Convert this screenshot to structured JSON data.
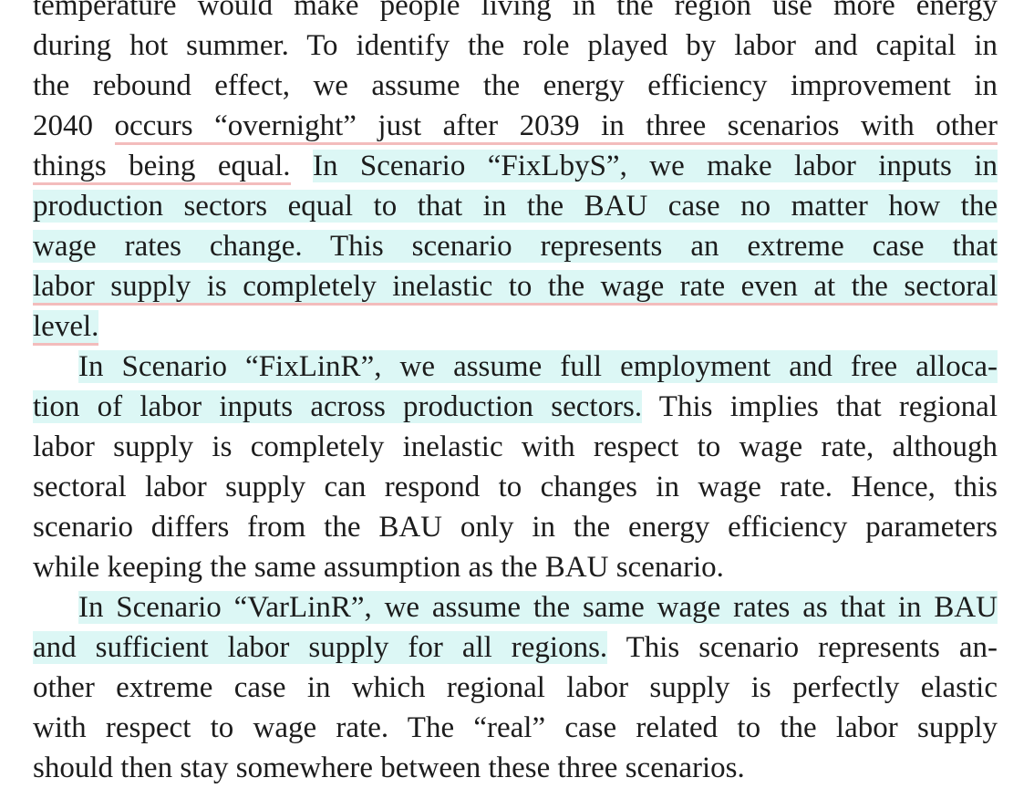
{
  "document": {
    "lines": [
      {
        "segments": [
          {
            "text": "temperature would make people living in the region use more energy",
            "style": "plain"
          }
        ]
      },
      {
        "segments": [
          {
            "text": "during hot summer. To identify the role played by labor and capital in",
            "style": "plain"
          }
        ]
      },
      {
        "segments": [
          {
            "text": "the rebound effect, we assume the energy efficiency improvement in",
            "style": "plain"
          }
        ]
      },
      {
        "segments": [
          {
            "text": "2040 ",
            "style": "plain"
          },
          {
            "text": "occurs “overnight” just after 2039 in three scenarios with other",
            "style": "ul"
          }
        ]
      },
      {
        "segments": [
          {
            "text": "things being equal.",
            "style": "ul"
          },
          {
            "text": " ",
            "style": "plain"
          },
          {
            "text": "In Scenario “FixLbyS”, we make labor inputs in",
            "style": "hl"
          }
        ]
      },
      {
        "segments": [
          {
            "text": "production sectors equal to that in the BAU case no matter how the",
            "style": "hl"
          }
        ]
      },
      {
        "segments": [
          {
            "text": "wage rates change. This scenario represents an extreme case that",
            "style": "hl"
          }
        ]
      },
      {
        "segments": [
          {
            "text": "labor supply is completely inelastic to the wage rate even at the sectoral",
            "style": "hlul"
          }
        ]
      },
      {
        "last": true,
        "segments": [
          {
            "text": "level.",
            "style": "hlul"
          }
        ]
      },
      {
        "indent": true,
        "segments": [
          {
            "text": "In Scenario “FixLinR”, we assume full employment and free alloca-",
            "style": "hl"
          }
        ]
      },
      {
        "segments": [
          {
            "text": "tion of labor inputs across production sectors.",
            "style": "hl"
          },
          {
            "text": " This implies that regional",
            "style": "plain"
          }
        ]
      },
      {
        "segments": [
          {
            "text": "labor supply is completely inelastic with respect to wage rate, although",
            "style": "plain"
          }
        ]
      },
      {
        "segments": [
          {
            "text": "sectoral labor supply can respond to changes in wage rate. Hence, this",
            "style": "plain"
          }
        ]
      },
      {
        "segments": [
          {
            "text": "scenario differs from the BAU only in the energy efficiency parameters",
            "style": "plain"
          }
        ]
      },
      {
        "last": true,
        "segments": [
          {
            "text": "while keeping the same assumption as the BAU scenario.",
            "style": "plain"
          }
        ]
      },
      {
        "indent": true,
        "segments": [
          {
            "text": "In Scenario “VarLinR”, we assume the same wage rates as that in BAU",
            "style": "hl"
          }
        ]
      },
      {
        "segments": [
          {
            "text": "and sufficient labor supply for all regions.",
            "style": "hl"
          },
          {
            "text": " This scenario represents an-",
            "style": "plain"
          }
        ]
      },
      {
        "segments": [
          {
            "text": "other extreme case in which regional labor supply is perfectly elastic",
            "style": "plain"
          }
        ]
      },
      {
        "segments": [
          {
            "text": "with respect to wage rate. The “real” case related to the labor supply",
            "style": "plain"
          }
        ]
      },
      {
        "last": true,
        "segments": [
          {
            "text": "should then stay somewhere between these three scenarios.",
            "style": "plain"
          }
        ]
      }
    ]
  }
}
